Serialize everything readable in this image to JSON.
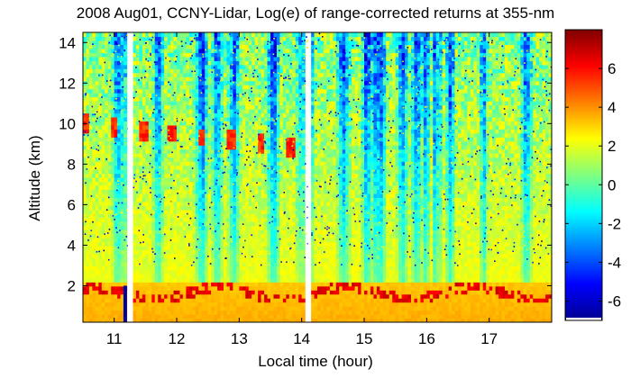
{
  "chart_data": {
    "type": "heatmap",
    "title": "2008 Aug01, CCNY-Lidar, Log(e) of range-corrected returns at 355-nm",
    "xlabel": "Local time (hour)",
    "ylabel": "Altitude (km)",
    "xlim": [
      10.5,
      18.0
    ],
    "ylim": [
      0.2,
      14.5
    ],
    "xticks": [
      11,
      12,
      13,
      14,
      15,
      16,
      17
    ],
    "yticks": [
      2,
      4,
      6,
      8,
      10,
      12,
      14
    ],
    "colorbar": {
      "range": [
        -7,
        8
      ],
      "ticks": [
        -6,
        -4,
        -2,
        0,
        2,
        4,
        6
      ],
      "colormap": "jet"
    },
    "data_gaps_hours": [
      [
        11.22,
        11.3
      ],
      [
        14.1,
        14.15
      ]
    ],
    "layers": [
      {
        "feature": "near-surface aerosol layer",
        "altitude_km": [
          0.2,
          2.0
        ],
        "log_return": 3.2
      },
      {
        "feature": "boundary-layer top clouds",
        "altitude_km": [
          1.4,
          2.8
        ],
        "log_return": 6.5
      },
      {
        "feature": "mid-level clouds",
        "altitude_km": [
          8.5,
          10.3
        ],
        "log_return": 5.5
      },
      {
        "feature": "free troposphere",
        "altitude_km": [
          2.0,
          14.5
        ],
        "log_return": 1.0
      }
    ]
  }
}
